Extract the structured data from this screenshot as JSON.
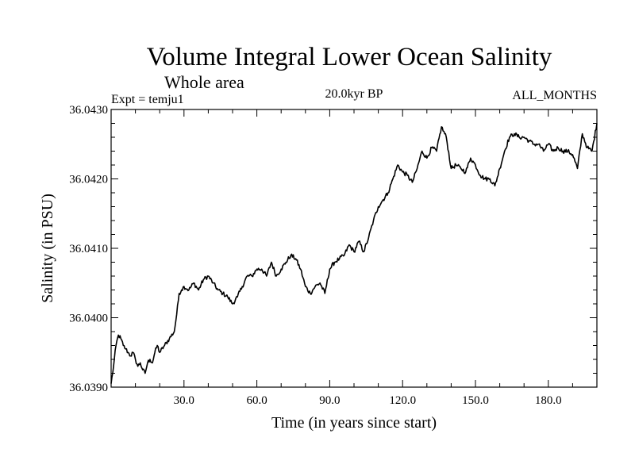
{
  "chart_data": {
    "type": "line",
    "title": "Volume Integral Lower Ocean Salinity",
    "subtitle": "Whole area",
    "left_info": "Expt = temju1",
    "center_info": "20.0kyr BP",
    "right_info": "ALL_MONTHS",
    "xlabel": "Time (in years since start)",
    "ylabel": "Salinity (in PSU)",
    "xlim": [
      0,
      200
    ],
    "ylim": [
      36.039,
      36.043
    ],
    "x_ticks": [
      {
        "value": 30,
        "label": "30.0"
      },
      {
        "value": 60,
        "label": "60.0"
      },
      {
        "value": 90,
        "label": "90.0"
      },
      {
        "value": 120,
        "label": "120.0"
      },
      {
        "value": 150,
        "label": "150.0"
      },
      {
        "value": 180,
        "label": "180.0"
      }
    ],
    "y_ticks": [
      {
        "value": 36.039,
        "label": "36.0390"
      },
      {
        "value": 36.04,
        "label": "36.0400"
      },
      {
        "value": 36.041,
        "label": "36.0410"
      },
      {
        "value": 36.042,
        "label": "36.0420"
      },
      {
        "value": 36.043,
        "label": "36.0430"
      }
    ],
    "series": [
      {
        "name": "Salinity",
        "x": [
          0,
          1,
          2,
          3,
          4,
          5,
          6,
          7,
          8,
          9,
          10,
          11,
          12,
          13,
          14,
          15,
          16,
          17,
          18,
          19,
          20,
          22,
          24,
          26,
          27,
          28,
          29,
          30,
          32,
          34,
          36,
          38,
          40,
          42,
          44,
          46,
          48,
          50,
          52,
          54,
          56,
          58,
          60,
          62,
          64,
          66,
          68,
          70,
          72,
          74,
          76,
          78,
          80,
          82,
          84,
          86,
          88,
          90,
          92,
          94,
          96,
          98,
          100,
          102,
          104,
          106,
          108,
          110,
          112,
          114,
          116,
          118,
          120,
          122,
          124,
          126,
          128,
          130,
          132,
          134,
          136,
          138,
          140,
          142,
          144,
          146,
          148,
          150,
          152,
          154,
          156,
          158,
          160,
          162,
          164,
          166,
          168,
          170,
          172,
          174,
          176,
          178,
          180,
          182,
          184,
          186,
          188,
          190,
          192,
          194,
          196,
          198,
          200
        ],
        "values": [
          36.03905,
          36.0393,
          36.0396,
          36.03975,
          36.0397,
          36.0396,
          36.03955,
          36.0395,
          36.03945,
          36.0395,
          36.0394,
          36.0393,
          36.03935,
          36.03925,
          36.0392,
          36.03935,
          36.0394,
          36.03935,
          36.0395,
          36.0396,
          36.0395,
          36.0396,
          36.0397,
          36.0398,
          36.04005,
          36.04035,
          36.0404,
          36.04045,
          36.0404,
          36.0405,
          36.0404,
          36.04055,
          36.0406,
          36.0405,
          36.0404,
          36.04035,
          36.0403,
          36.0402,
          36.0403,
          36.04045,
          36.0406,
          36.0406,
          36.0407,
          36.0407,
          36.0406,
          36.0408,
          36.0406,
          36.0407,
          36.0408,
          36.0409,
          36.04085,
          36.0407,
          36.04045,
          36.04035,
          36.04045,
          36.0405,
          36.04035,
          36.0407,
          36.0408,
          36.04085,
          36.0409,
          36.04105,
          36.04095,
          36.0411,
          36.04095,
          36.04115,
          36.0414,
          36.0416,
          36.0417,
          36.0418,
          36.042,
          36.0422,
          36.0421,
          36.04205,
          36.04195,
          36.04215,
          36.0424,
          36.0423,
          36.04245,
          36.0424,
          36.04275,
          36.0426,
          36.04215,
          36.0422,
          36.04215,
          36.0421,
          36.0423,
          36.0422,
          36.04205,
          36.042,
          36.042,
          36.0419,
          36.04215,
          36.0424,
          36.0426,
          36.04265,
          36.0426,
          36.0426,
          36.04255,
          36.0425,
          36.0425,
          36.0424,
          36.0425,
          36.0424,
          36.04245,
          36.0424,
          36.0424,
          36.04235,
          36.04215,
          36.04265,
          36.04245,
          36.0424,
          36.0428
        ]
      }
    ]
  }
}
